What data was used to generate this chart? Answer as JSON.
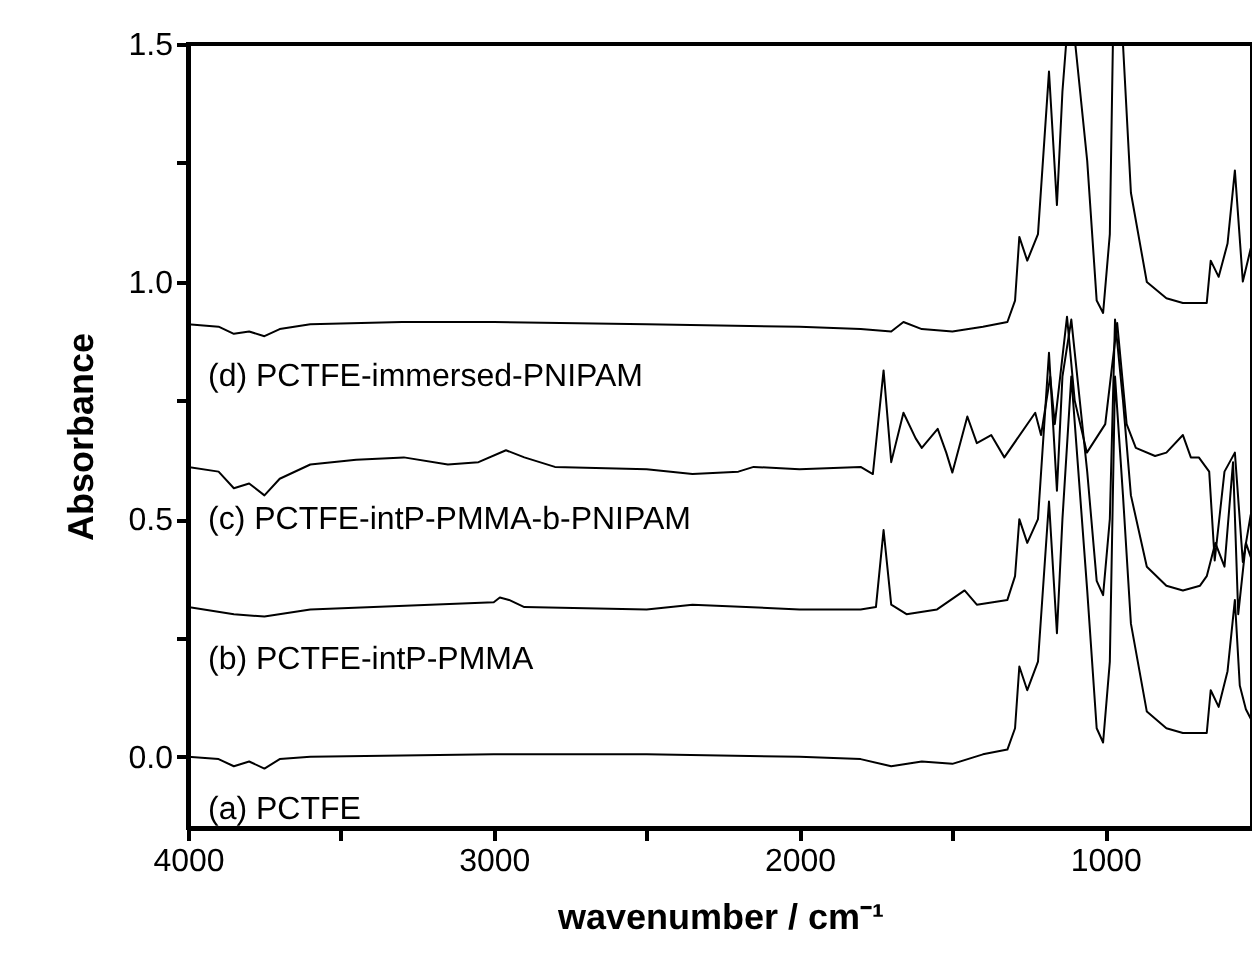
{
  "chart_data": {
    "type": "line",
    "xlabel": "wavenumber / cm⁻¹",
    "ylabel": "Absorbance",
    "xlim": [
      4000,
      520
    ],
    "ylim": [
      -0.15,
      1.5
    ],
    "xticks": [
      4000,
      {
        "value": 3500,
        "label": null
      },
      3000,
      {
        "value": 2500,
        "label": null
      },
      2000,
      {
        "value": 1500,
        "label": null
      },
      1000
    ],
    "yticks": [
      {
        "value": 0,
        "label": "0.0"
      },
      {
        "value": 0.25,
        "label": null
      },
      {
        "value": 0.5,
        "label": "0.5"
      },
      {
        "value": 0.75,
        "label": null
      },
      {
        "value": 1,
        "label": "1.0"
      },
      {
        "value": 1.25,
        "label": null
      },
      {
        "value": 1.5,
        "label": "1.5"
      }
    ],
    "grid": false,
    "legend": false,
    "line_style": "solid",
    "series": [
      {
        "name": "(a) PCTFE",
        "color": "#000000",
        "x": [
          4000,
          3900,
          3850,
          3800,
          3750,
          3700,
          3600,
          3000,
          2500,
          2000,
          1800,
          1700,
          1600,
          1500,
          1400,
          1320,
          1295,
          1281,
          1255,
          1220,
          1184,
          1158,
          1140,
          1111,
          1059,
          1028,
          1007,
          985,
          968,
          942,
          916,
          864,
          800,
          746,
          668,
          655,
          629,
          600,
          576,
          560,
          540,
          524
        ],
        "values": [
          0,
          -0.005,
          -0.02,
          -0.01,
          -0.025,
          -0.005,
          0,
          0.005,
          0.005,
          0,
          -0.005,
          -0.02,
          -0.01,
          -0.015,
          0.005,
          0.015,
          0.06,
          0.19,
          0.14,
          0.2,
          0.537,
          0.26,
          0.5,
          0.8,
          0.35,
          0.06,
          0.03,
          0.2,
          0.8,
          0.55,
          0.28,
          0.095,
          0.06,
          0.05,
          0.05,
          0.14,
          0.105,
          0.18,
          0.33,
          0.15,
          0.1,
          0.08
        ]
      },
      {
        "name": "(b) PCTFE-intP-PMMA",
        "color": "#000000",
        "x": [
          4000,
          3850,
          3750,
          3600,
          3000,
          2980,
          2950,
          2900,
          2500,
          2350,
          2000,
          1800,
          1750,
          1725,
          1700,
          1650,
          1550,
          1460,
          1420,
          1320,
          1295,
          1281,
          1255,
          1220,
          1184,
          1158,
          1140,
          1111,
          1059,
          1028,
          1007,
          985,
          968,
          942,
          916,
          864,
          800,
          746,
          690,
          668,
          640,
          610,
          582,
          565,
          540,
          524
        ],
        "values": [
          0.315,
          0.3,
          0.295,
          0.31,
          0.325,
          0.335,
          0.33,
          0.315,
          0.31,
          0.32,
          0.31,
          0.31,
          0.315,
          0.477,
          0.32,
          0.3,
          0.31,
          0.35,
          0.32,
          0.33,
          0.38,
          0.5,
          0.45,
          0.5,
          0.85,
          0.56,
          0.8,
          0.92,
          0.6,
          0.37,
          0.34,
          0.5,
          0.92,
          0.75,
          0.55,
          0.4,
          0.36,
          0.35,
          0.36,
          0.38,
          0.45,
          0.4,
          0.62,
          0.3,
          0.45,
          0.42
        ]
      },
      {
        "name": "(c) PCTFE-intP-PMMA-b-PNIPAM",
        "color": "#000000",
        "x": [
          4000,
          3900,
          3850,
          3800,
          3750,
          3700,
          3600,
          3450,
          3294,
          3150,
          3050,
          2960,
          2900,
          2800,
          2500,
          2350,
          2200,
          2150,
          2000,
          1800,
          1760,
          1725,
          1700,
          1660,
          1620,
          1600,
          1548,
          1520,
          1500,
          1451,
          1420,
          1373,
          1330,
          1229,
          1210,
          1180,
          1165,
          1125,
          1100,
          1060,
          1000,
          961,
          930,
          900,
          837,
          800,
          746,
          720,
          694,
          660,
          642,
          610,
          576,
          550,
          524
        ],
        "values": [
          0.61,
          0.6,
          0.565,
          0.575,
          0.55,
          0.585,
          0.615,
          0.625,
          0.63,
          0.615,
          0.62,
          0.645,
          0.63,
          0.61,
          0.605,
          0.595,
          0.6,
          0.61,
          0.605,
          0.61,
          0.595,
          0.813,
          0.62,
          0.724,
          0.67,
          0.65,
          0.69,
          0.64,
          0.598,
          0.716,
          0.66,
          0.677,
          0.63,
          0.724,
          0.677,
          0.8,
          0.7,
          0.926,
          0.75,
          0.64,
          0.7,
          0.913,
          0.7,
          0.65,
          0.633,
          0.64,
          0.677,
          0.63,
          0.63,
          0.6,
          0.413,
          0.6,
          0.64,
          0.41,
          0.51
        ]
      },
      {
        "name": "(d) PCTFE-immersed-PNIPAM",
        "color": "#000000",
        "x": [
          4000,
          3900,
          3850,
          3800,
          3750,
          3700,
          3600,
          3300,
          3000,
          2500,
          2000,
          1800,
          1700,
          1660,
          1600,
          1500,
          1400,
          1320,
          1295,
          1281,
          1255,
          1220,
          1184,
          1158,
          1140,
          1128,
          1111,
          1098,
          1059,
          1028,
          1007,
          985,
          975,
          955,
          942,
          916,
          864,
          800,
          746,
          668,
          655,
          629,
          600,
          576,
          550,
          524
        ],
        "values": [
          0.91,
          0.905,
          0.89,
          0.895,
          0.885,
          0.9,
          0.91,
          0.915,
          0.915,
          0.91,
          0.905,
          0.9,
          0.895,
          0.915,
          0.9,
          0.895,
          0.905,
          0.915,
          0.96,
          1.094,
          1.044,
          1.1,
          1.442,
          1.161,
          1.4,
          1.5,
          null,
          1.5,
          1.254,
          0.96,
          0.934,
          1.1,
          1.5,
          null,
          1.5,
          1.187,
          0.999,
          0.965,
          0.955,
          0.955,
          1.044,
          1.01,
          1.08,
          1.234,
          1,
          1.07
        ]
      }
    ]
  }
}
